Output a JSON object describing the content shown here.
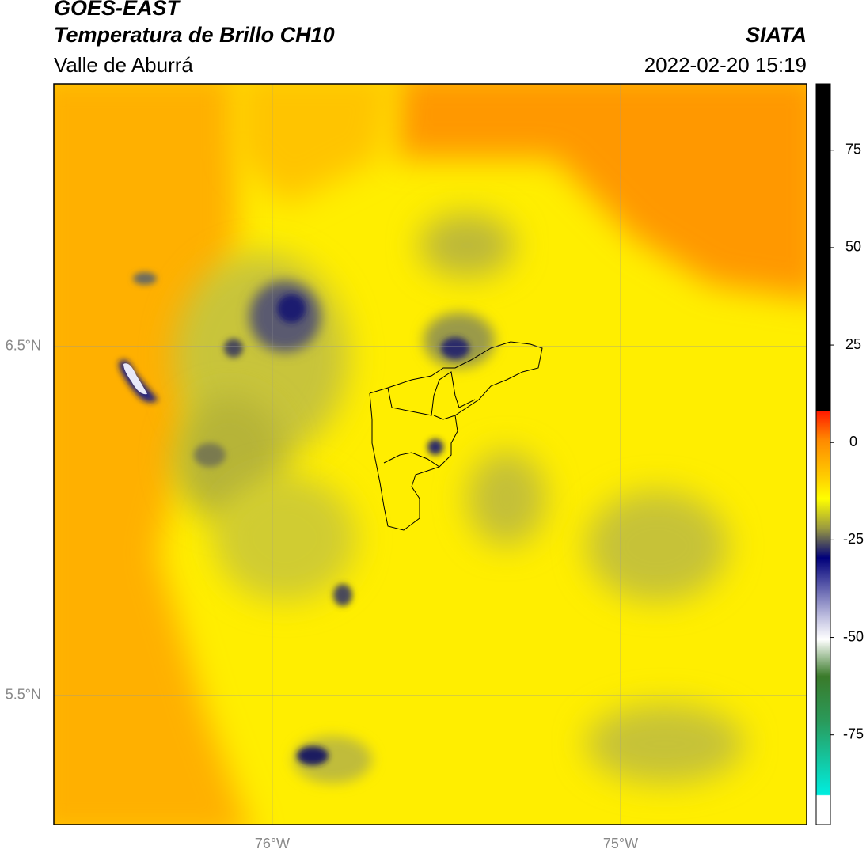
{
  "header": {
    "title": "GOES-EAST",
    "subtitle": "Temperatura de Brillo CH10",
    "region": "Valle de Aburrá",
    "source": "SIATA",
    "datetime": "2022-02-20 15:19"
  },
  "map": {
    "xlim": [
      -76.627,
      -74.466
    ],
    "ylim": [
      5.13,
      7.253
    ],
    "xticks": [
      {
        "value": -76,
        "label": "76°W"
      },
      {
        "value": -75,
        "label": "75°W"
      }
    ],
    "yticks": [
      {
        "value": 6.5,
        "label": "6.5°N"
      },
      {
        "value": 5.5,
        "label": "5.5°N"
      }
    ],
    "grid": true
  },
  "colorbar": {
    "lim": [
      -98,
      92
    ],
    "ticks": [
      75,
      50,
      25,
      0,
      -25,
      -50,
      -75
    ]
  }
}
